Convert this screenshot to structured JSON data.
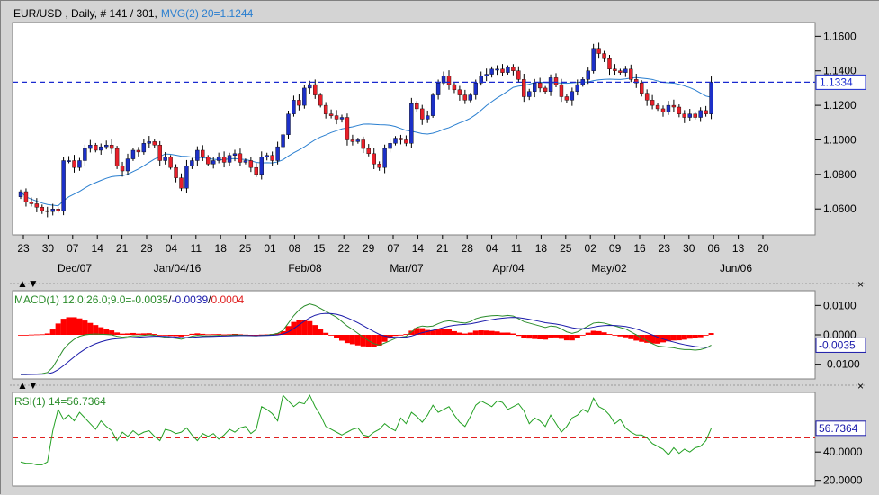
{
  "header": {
    "symbol": "EUR/USD , Daily, # 141 / 301,",
    "indicator": "MVG(2) 20=1.1244"
  },
  "colors": {
    "bull": "#1c30c8",
    "bear": "#e8202a",
    "ma": "#2a7fd0",
    "macd": "#2a8c2a",
    "signal": "#1a1aaa",
    "hist": "#ff0000",
    "rsi": "#22a022",
    "refline": "#1a2ad0",
    "rsiref": "#e02020",
    "panel_bg": "#ffffff",
    "chrome": "#d4d4d4"
  },
  "price_axis": {
    "ticks": [
      "1.1600",
      "1.1400",
      "1.1200",
      "1.1000",
      "1.0800",
      "1.0600"
    ],
    "current_label": "1.1334"
  },
  "x_axis": {
    "days": [
      "23",
      "30",
      "07",
      "14",
      "21",
      "28",
      "04",
      "11",
      "18",
      "25",
      "01",
      "08",
      "15",
      "22",
      "29",
      "07",
      "14",
      "21",
      "28",
      "04",
      "11",
      "18",
      "25",
      "02",
      "09",
      "16",
      "23",
      "30",
      "06",
      "13",
      "20"
    ],
    "months": [
      "Dec/07",
      "Jan/04/16",
      "Feb/08",
      "Mar/07",
      "Apr/04",
      "May/02",
      "Jun/06"
    ]
  },
  "macd_panel": {
    "label_name": "MACD(1) 12.0;26.0;9.0=",
    "label_v1": "-0.0035",
    "label_sep1": "/",
    "label_v2": "-0.0039",
    "label_sep2": "/",
    "label_v3": "0.0004",
    "ticks": [
      "0.0100",
      "0.0000",
      "-0.0100"
    ],
    "current_label": "-0.0035"
  },
  "rsi_panel": {
    "label": "RSI(1) 14=56.7364",
    "ticks": [
      "40.0000",
      "20.0000"
    ],
    "current_label": "56.7364"
  },
  "chart_data": {
    "type": "candlestick",
    "symbol": "EUR/USD",
    "timeframe": "Daily",
    "ylim": [
      1.045,
      1.168
    ],
    "ma_period": 20,
    "ma_last": 1.1244,
    "last_price": 1.1334,
    "closes": [
      1.07,
      1.064,
      1.063,
      1.061,
      1.059,
      1.0585,
      1.06,
      1.059,
      1.088,
      1.088,
      1.084,
      1.088,
      1.095,
      1.097,
      1.094,
      1.096,
      1.097,
      1.095,
      1.085,
      1.082,
      1.089,
      1.094,
      1.093,
      1.098,
      1.099,
      1.097,
      1.088,
      1.09,
      1.084,
      1.078,
      1.072,
      1.085,
      1.088,
      1.094,
      1.09,
      1.086,
      1.088,
      1.09,
      1.087,
      1.091,
      1.092,
      1.087,
      1.088,
      1.084,
      1.08,
      1.09,
      1.091,
      1.088,
      1.096,
      1.103,
      1.115,
      1.123,
      1.12,
      1.13,
      1.132,
      1.126,
      1.12,
      1.115,
      1.114,
      1.112,
      1.113,
      1.1,
      1.099,
      1.1,
      1.095,
      1.092,
      1.086,
      1.084,
      1.095,
      1.098,
      1.101,
      1.1,
      1.098,
      1.121,
      1.118,
      1.112,
      1.114,
      1.126,
      1.133,
      1.137,
      1.132,
      1.129,
      1.126,
      1.123,
      1.126,
      1.133,
      1.137,
      1.138,
      1.141,
      1.141,
      1.139,
      1.142,
      1.14,
      1.135,
      1.125,
      1.128,
      1.133,
      1.13,
      1.128,
      1.136,
      1.132,
      1.125,
      1.123,
      1.128,
      1.132,
      1.135,
      1.14,
      1.153,
      1.15,
      1.147,
      1.141,
      1.14,
      1.139,
      1.141,
      1.135,
      1.133,
      1.127,
      1.123,
      1.12,
      1.118,
      1.116,
      1.12,
      1.119,
      1.115,
      1.113,
      1.115,
      1.113,
      1.117,
      1.115,
      1.1334
    ],
    "rsi": [
      33,
      32,
      32,
      31,
      31,
      33,
      55,
      70,
      63,
      66,
      62,
      68,
      64,
      60,
      56,
      62,
      58,
      55,
      48,
      54,
      51,
      55,
      52,
      54,
      55,
      51,
      48,
      56,
      55,
      53,
      54,
      57,
      52,
      48,
      53,
      51,
      53,
      49,
      52,
      56,
      54,
      57,
      58,
      53,
      56,
      72,
      70,
      67,
      62,
      80,
      76,
      72,
      75,
      74,
      80,
      72,
      66,
      58,
      56,
      54,
      52,
      54,
      56,
      57,
      52,
      51,
      54,
      56,
      60,
      57,
      55,
      64,
      60,
      68,
      65,
      61,
      66,
      73,
      68,
      70,
      72,
      66,
      61,
      58,
      65,
      73,
      76,
      74,
      72,
      76,
      75,
      70,
      72,
      74,
      69,
      60,
      64,
      62,
      58,
      66,
      60,
      54,
      58,
      64,
      66,
      70,
      68,
      78,
      72,
      70,
      66,
      60,
      63,
      57,
      54,
      52,
      52,
      50,
      46,
      44,
      42,
      38,
      43,
      39,
      42,
      40,
      43,
      44,
      48,
      56.7364
    ],
    "macd": [
      -0.0135,
      -0.0135,
      -0.0134,
      -0.0133,
      -0.0132,
      -0.0128,
      -0.011,
      -0.008,
      -0.005,
      -0.003,
      -0.0015,
      -0.0005,
      0.0,
      0.0002,
      0.0003,
      0.0002,
      0.0001,
      0.0,
      -0.0005,
      -0.0008,
      -0.0006,
      -0.0003,
      -0.0004,
      -0.0002,
      0.0,
      -0.0002,
      -0.0005,
      -0.0008,
      -0.001,
      -0.0012,
      -0.0015,
      -0.001,
      -0.0005,
      -0.0002,
      -0.0003,
      -0.0004,
      -0.0003,
      -0.0002,
      -0.0003,
      -0.0002,
      0.0,
      -0.0001,
      -0.0002,
      -0.0003,
      -0.0004,
      -0.0002,
      -0.0001,
      0.0001,
      0.0005,
      0.0015,
      0.004,
      0.0065,
      0.0085,
      0.0098,
      0.0105,
      0.01,
      0.009,
      0.008,
      0.007,
      0.006,
      0.0045,
      0.003,
      0.0018,
      0.0005,
      -0.0008,
      -0.002,
      -0.003,
      -0.0035,
      -0.0028,
      -0.002,
      -0.0012,
      -0.0008,
      -0.0005,
      0.001,
      0.0025,
      0.003,
      0.0028,
      0.003,
      0.0038,
      0.0045,
      0.0048,
      0.0045,
      0.0042,
      0.004,
      0.0045,
      0.0055,
      0.006,
      0.0063,
      0.0065,
      0.0066,
      0.0064,
      0.0066,
      0.0064,
      0.0055,
      0.0045,
      0.004,
      0.0035,
      0.003,
      0.0025,
      0.003,
      0.0028,
      0.002,
      0.001,
      0.0005,
      0.001,
      0.002,
      0.003,
      0.004,
      0.0042,
      0.004,
      0.0035,
      0.003,
      0.0025,
      0.002,
      0.001,
      0.0,
      -0.001,
      -0.002,
      -0.003,
      -0.0038,
      -0.004,
      -0.0042,
      -0.0044,
      -0.0048,
      -0.005,
      -0.005,
      -0.0052,
      -0.005,
      -0.0045,
      -0.0035
    ],
    "macd_ylim": [
      -0.015,
      0.015
    ],
    "rsi_ylim": [
      16,
      82
    ],
    "rsi_reference": 50
  }
}
